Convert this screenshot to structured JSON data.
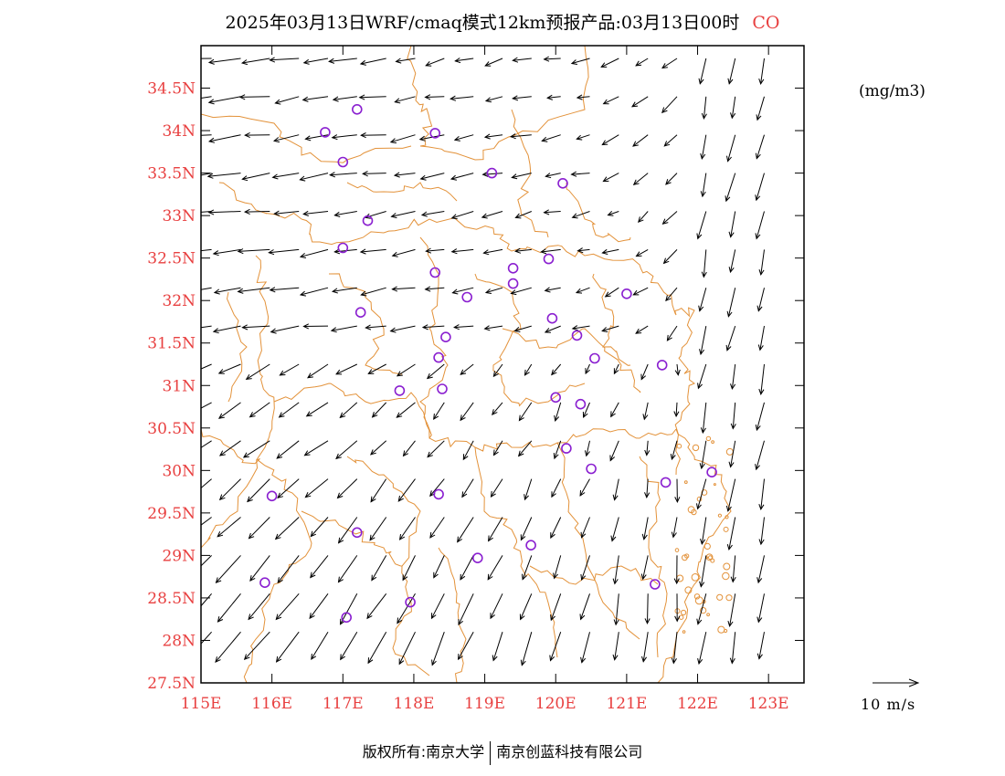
{
  "title": {
    "text": "2025年03月13日WRF/cmaq模式12km预报产品:03月13日00时",
    "species": "CO"
  },
  "unit": "(mg/m3)",
  "vector_scale": {
    "label": "10 m/s",
    "speed_ms": 10
  },
  "copyright": {
    "left": "版权所有:南京大学",
    "right": "南京创蓝科技有限公司"
  },
  "colors": {
    "axis_labels": "#e84040",
    "boundaries": "#e3923a",
    "stations": "#8a1fd0",
    "arrows": "#000000"
  },
  "map": {
    "lon_range": [
      115,
      123.5
    ],
    "lat_range": [
      27.5,
      35.0
    ],
    "lon_ticks": [
      "115E",
      "116E",
      "117E",
      "118E",
      "119E",
      "120E",
      "121E",
      "122E",
      "123E"
    ],
    "lat_ticks": [
      "27.5N",
      "28N",
      "28.5N",
      "29N",
      "29.5N",
      "30N",
      "30.5N",
      "31N",
      "31.5N",
      "32N",
      "32.5N",
      "33N",
      "33.5N",
      "34N",
      "34.5N"
    ],
    "stations": [
      [
        117.2,
        34.25
      ],
      [
        116.75,
        33.98
      ],
      [
        118.3,
        33.97
      ],
      [
        117.0,
        33.63
      ],
      [
        119.1,
        33.5
      ],
      [
        120.1,
        33.38
      ],
      [
        117.35,
        32.94
      ],
      [
        117.0,
        32.62
      ],
      [
        118.3,
        32.33
      ],
      [
        119.4,
        32.38
      ],
      [
        119.9,
        32.49
      ],
      [
        118.75,
        32.04
      ],
      [
        119.4,
        32.2
      ],
      [
        121.0,
        32.08
      ],
      [
        117.25,
        31.86
      ],
      [
        119.95,
        31.79
      ],
      [
        120.3,
        31.59
      ],
      [
        118.45,
        31.57
      ],
      [
        118.35,
        31.33
      ],
      [
        120.55,
        31.32
      ],
      [
        121.5,
        31.24
      ],
      [
        117.8,
        30.94
      ],
      [
        118.4,
        30.96
      ],
      [
        120.0,
        30.86
      ],
      [
        120.35,
        30.78
      ],
      [
        120.15,
        30.26
      ],
      [
        120.5,
        30.02
      ],
      [
        121.55,
        29.86
      ],
      [
        122.2,
        29.98
      ],
      [
        116.0,
        29.7
      ],
      [
        118.35,
        29.72
      ],
      [
        117.2,
        29.27
      ],
      [
        119.65,
        29.12
      ],
      [
        118.9,
        28.97
      ],
      [
        115.9,
        28.68
      ],
      [
        121.4,
        28.66
      ],
      [
        117.95,
        28.45
      ],
      [
        117.05,
        28.27
      ]
    ]
  }
}
